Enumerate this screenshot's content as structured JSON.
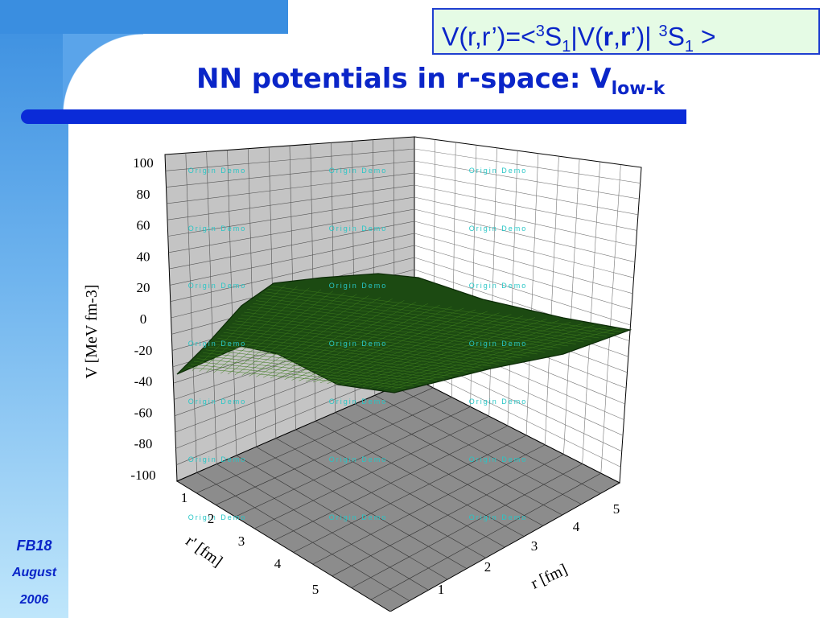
{
  "slide": {
    "equation": {
      "lhs": "V(r,r’)=<",
      "sup1": "3",
      "s1": "S",
      "sub1": "1",
      "mid": "|V(",
      "r": "r",
      "comma": ",",
      "rprime": "r",
      "close": "’)| ",
      "sup2": "3",
      "s2": "S",
      "sub2": "1",
      "end": " >"
    },
    "title_main": "NN potentials in r-space: V",
    "title_sub": "low-k",
    "footer": {
      "line1": "FB18",
      "line2": "August",
      "line3": "2006"
    },
    "colors": {
      "accent": "#0a25c8",
      "band": "#3a8ee0",
      "surface": "#1c4a12"
    }
  },
  "chart_data": {
    "type": "surface",
    "zlabel": "V [MeV fm-3]",
    "xlabel": "r [fm]",
    "ylabel": "r' [fm]",
    "zlim": [
      -100,
      100
    ],
    "zticks": [
      "100",
      "80",
      "60",
      "40",
      "20",
      "0",
      "-20",
      "-40",
      "-60",
      "-80",
      "-100"
    ],
    "xticks": [
      "1",
      "2",
      "3",
      "4",
      "5"
    ],
    "yticks": [
      "1",
      "2",
      "3",
      "4",
      "5"
    ],
    "watermark": "Origin Demo",
    "grid": true
  }
}
